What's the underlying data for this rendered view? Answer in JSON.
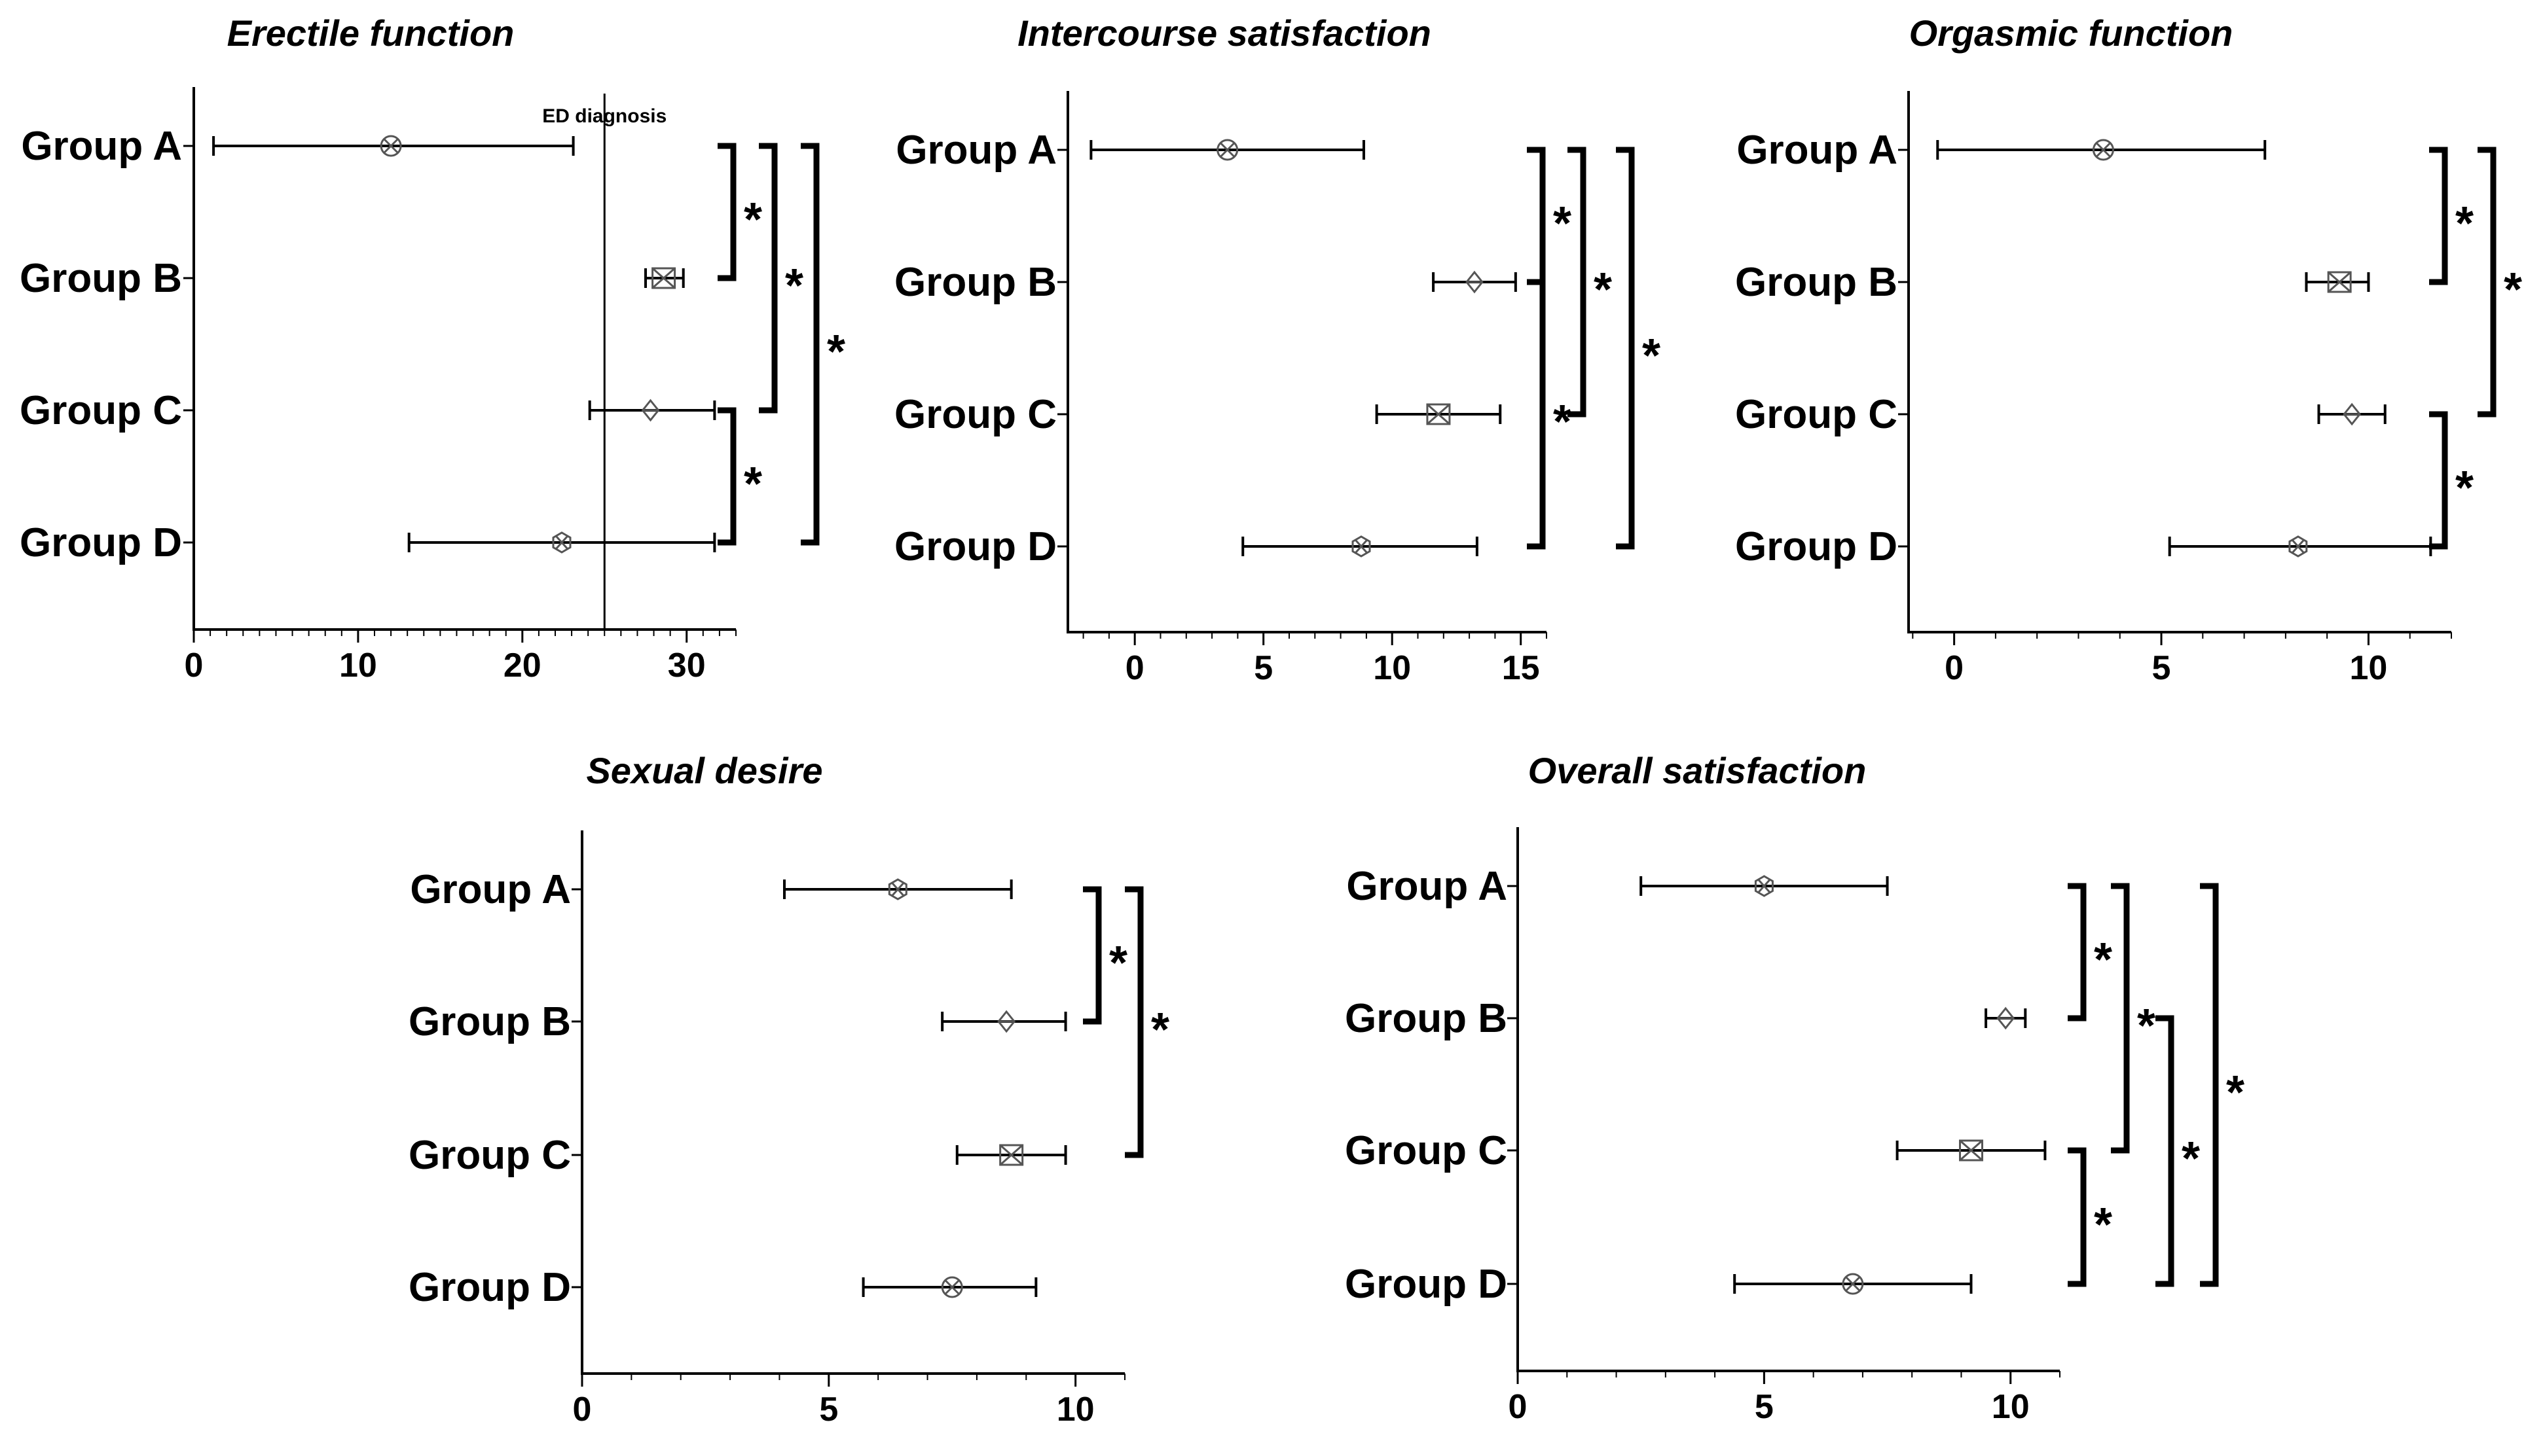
{
  "chart_data": [
    {
      "type": "forest",
      "title": "Erectile function",
      "categories": [
        "Group A",
        "Group B",
        "Group C",
        "Group D"
      ],
      "means": [
        12,
        28.6,
        27.8,
        22.4
      ],
      "lower": [
        1.2,
        27.5,
        24.1,
        13.1
      ],
      "upper": [
        23.1,
        29.8,
        31.7,
        31.7
      ],
      "markers": [
        "circle-x",
        "square-x",
        "diamond",
        "hexagon"
      ],
      "xlim": [
        0,
        33
      ],
      "xticks": [
        "0",
        "10",
        "20",
        "30"
      ],
      "xtick_values": [
        0,
        10,
        20,
        30
      ],
      "minor_step": 1,
      "reference_line": {
        "value": 25,
        "label": "ED diagnosis"
      },
      "significance": [
        {
          "from": "Group A",
          "to": "Group B",
          "label": "*"
        },
        {
          "from": "Group A",
          "to": "Group C",
          "label": "*"
        },
        {
          "from": "Group A",
          "to": "Group D",
          "label": "*"
        },
        {
          "from": "Group C",
          "to": "Group D",
          "label": "*"
        }
      ]
    },
    {
      "type": "forest",
      "title": "Intercourse satisfaction",
      "categories": [
        "Group A",
        "Group B",
        "Group C",
        "Group D"
      ],
      "means": [
        3.6,
        13.2,
        11.8,
        8.8
      ],
      "lower": [
        -1.7,
        11.6,
        9.4,
        4.2
      ],
      "upper": [
        8.9,
        14.8,
        14.2,
        13.3
      ],
      "markers": [
        "circle-x",
        "diamond",
        "square-x",
        "hexagon"
      ],
      "xlim": [
        -2.6,
        16
      ],
      "xticks": [
        "0",
        "5",
        "10",
        "15"
      ],
      "xtick_values": [
        0,
        5,
        10,
        15
      ],
      "minor_step": 1,
      "significance": [
        {
          "from": "Group A",
          "to": "Group B",
          "label": "*"
        },
        {
          "from": "Group A",
          "to": "Group C",
          "label": "*"
        },
        {
          "from": "Group B",
          "to": "Group D",
          "label": "*"
        },
        {
          "from": "Group A",
          "to": "Group D",
          "label": "*"
        }
      ]
    },
    {
      "type": "forest",
      "title": "Orgasmic function",
      "categories": [
        "Group A",
        "Group B",
        "Group C",
        "Group D"
      ],
      "means": [
        3.6,
        9.3,
        9.6,
        8.3
      ],
      "lower": [
        -0.4,
        8.5,
        8.8,
        5.2
      ],
      "upper": [
        7.5,
        10,
        10.4,
        11.5
      ],
      "markers": [
        "circle-x",
        "square-x",
        "diamond",
        "hexagon"
      ],
      "xlim": [
        -1.1,
        12
      ],
      "xticks": [
        "0",
        "5",
        "10"
      ],
      "xtick_values": [
        0,
        5,
        10
      ],
      "minor_step": 1,
      "significance": [
        {
          "from": "Group A",
          "to": "Group B",
          "label": "*"
        },
        {
          "from": "Group A",
          "to": "Group C",
          "label": "*"
        },
        {
          "from": "Group C",
          "to": "Group D",
          "label": "*"
        }
      ]
    },
    {
      "type": "forest",
      "title": "Sexual desire",
      "categories": [
        "Group A",
        "Group B",
        "Group C",
        "Group D"
      ],
      "means": [
        6.4,
        8.6,
        8.7,
        7.5
      ],
      "lower": [
        4.1,
        7.3,
        7.6,
        5.7
      ],
      "upper": [
        8.7,
        9.8,
        9.8,
        9.2
      ],
      "markers": [
        "hexagon",
        "diamond",
        "square-x",
        "circle-x"
      ],
      "xlim": [
        0,
        11
      ],
      "xticks": [
        "0",
        "5",
        "10"
      ],
      "xtick_values": [
        0,
        5,
        10
      ],
      "minor_step": 1,
      "significance": [
        {
          "from": "Group A",
          "to": "Group B",
          "label": "*"
        },
        {
          "from": "Group A",
          "to": "Group C",
          "label": "*"
        }
      ]
    },
    {
      "type": "forest",
      "title": "Overall satisfaction",
      "categories": [
        "Group A",
        "Group B",
        "Group C",
        "Group D"
      ],
      "means": [
        5,
        9.9,
        9.2,
        6.8
      ],
      "lower": [
        2.5,
        9.5,
        7.7,
        4.4
      ],
      "upper": [
        7.5,
        10.3,
        10.7,
        9.2
      ],
      "markers": [
        "hexagon",
        "diamond",
        "square-x",
        "circle-x"
      ],
      "xlim": [
        0,
        11
      ],
      "xticks": [
        "0",
        "5",
        "10"
      ],
      "xtick_values": [
        0,
        5,
        10
      ],
      "minor_step": 1,
      "significance": [
        {
          "from": "Group A",
          "to": "Group B",
          "label": "*"
        },
        {
          "from": "Group A",
          "to": "Group C",
          "label": "*"
        },
        {
          "from": "Group C",
          "to": "Group D",
          "label": "*"
        },
        {
          "from": "Group B",
          "to": "Group D",
          "label": "*"
        },
        {
          "from": "Group A",
          "to": "Group D",
          "label": "*"
        }
      ]
    }
  ]
}
